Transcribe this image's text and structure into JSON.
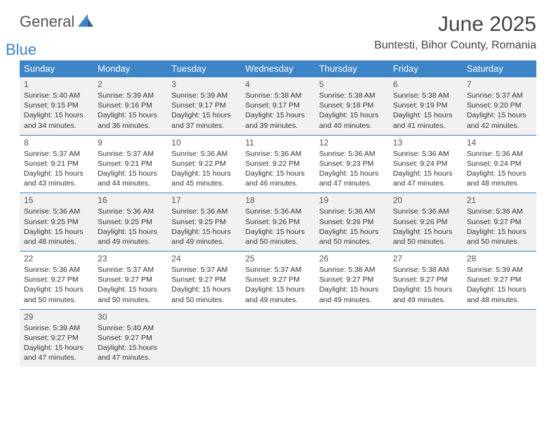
{
  "brand": {
    "general": "General",
    "blue": "Blue",
    "logo_color": "#3d85c6"
  },
  "header": {
    "month_title": "June 2025",
    "location": "Buntesti, Bihor County, Romania",
    "title_fontsize": 30,
    "title_color": "#444444",
    "location_fontsize": 16
  },
  "calendar": {
    "header_bg": "#3d85c6",
    "header_text_color": "#ffffff",
    "row_alt_bg": "#f1f1f1",
    "border_color": "#3d85c6",
    "day_headers": [
      "Sunday",
      "Monday",
      "Tuesday",
      "Wednesday",
      "Thursday",
      "Friday",
      "Saturday"
    ],
    "weeks": [
      [
        {
          "num": "1",
          "sunrise": "Sunrise: 5:40 AM",
          "sunset": "Sunset: 9:15 PM",
          "daylight": "Daylight: 15 hours and 34 minutes."
        },
        {
          "num": "2",
          "sunrise": "Sunrise: 5:39 AM",
          "sunset": "Sunset: 9:16 PM",
          "daylight": "Daylight: 15 hours and 36 minutes."
        },
        {
          "num": "3",
          "sunrise": "Sunrise: 5:39 AM",
          "sunset": "Sunset: 9:17 PM",
          "daylight": "Daylight: 15 hours and 37 minutes."
        },
        {
          "num": "4",
          "sunrise": "Sunrise: 5:38 AM",
          "sunset": "Sunset: 9:17 PM",
          "daylight": "Daylight: 15 hours and 39 minutes."
        },
        {
          "num": "5",
          "sunrise": "Sunrise: 5:38 AM",
          "sunset": "Sunset: 9:18 PM",
          "daylight": "Daylight: 15 hours and 40 minutes."
        },
        {
          "num": "6",
          "sunrise": "Sunrise: 5:38 AM",
          "sunset": "Sunset: 9:19 PM",
          "daylight": "Daylight: 15 hours and 41 minutes."
        },
        {
          "num": "7",
          "sunrise": "Sunrise: 5:37 AM",
          "sunset": "Sunset: 9:20 PM",
          "daylight": "Daylight: 15 hours and 42 minutes."
        }
      ],
      [
        {
          "num": "8",
          "sunrise": "Sunrise: 5:37 AM",
          "sunset": "Sunset: 9:21 PM",
          "daylight": "Daylight: 15 hours and 43 minutes."
        },
        {
          "num": "9",
          "sunrise": "Sunrise: 5:37 AM",
          "sunset": "Sunset: 9:21 PM",
          "daylight": "Daylight: 15 hours and 44 minutes."
        },
        {
          "num": "10",
          "sunrise": "Sunrise: 5:36 AM",
          "sunset": "Sunset: 9:22 PM",
          "daylight": "Daylight: 15 hours and 45 minutes."
        },
        {
          "num": "11",
          "sunrise": "Sunrise: 5:36 AM",
          "sunset": "Sunset: 9:22 PM",
          "daylight": "Daylight: 15 hours and 46 minutes."
        },
        {
          "num": "12",
          "sunrise": "Sunrise: 5:36 AM",
          "sunset": "Sunset: 9:23 PM",
          "daylight": "Daylight: 15 hours and 47 minutes."
        },
        {
          "num": "13",
          "sunrise": "Sunrise: 5:36 AM",
          "sunset": "Sunset: 9:24 PM",
          "daylight": "Daylight: 15 hours and 47 minutes."
        },
        {
          "num": "14",
          "sunrise": "Sunrise: 5:36 AM",
          "sunset": "Sunset: 9:24 PM",
          "daylight": "Daylight: 15 hours and 48 minutes."
        }
      ],
      [
        {
          "num": "15",
          "sunrise": "Sunrise: 5:36 AM",
          "sunset": "Sunset: 9:25 PM",
          "daylight": "Daylight: 15 hours and 48 minutes."
        },
        {
          "num": "16",
          "sunrise": "Sunrise: 5:36 AM",
          "sunset": "Sunset: 9:25 PM",
          "daylight": "Daylight: 15 hours and 49 minutes."
        },
        {
          "num": "17",
          "sunrise": "Sunrise: 5:36 AM",
          "sunset": "Sunset: 9:25 PM",
          "daylight": "Daylight: 15 hours and 49 minutes."
        },
        {
          "num": "18",
          "sunrise": "Sunrise: 5:36 AM",
          "sunset": "Sunset: 9:26 PM",
          "daylight": "Daylight: 15 hours and 50 minutes."
        },
        {
          "num": "19",
          "sunrise": "Sunrise: 5:36 AM",
          "sunset": "Sunset: 9:26 PM",
          "daylight": "Daylight: 15 hours and 50 minutes."
        },
        {
          "num": "20",
          "sunrise": "Sunrise: 5:36 AM",
          "sunset": "Sunset: 9:26 PM",
          "daylight": "Daylight: 15 hours and 50 minutes."
        },
        {
          "num": "21",
          "sunrise": "Sunrise: 5:36 AM",
          "sunset": "Sunset: 9:27 PM",
          "daylight": "Daylight: 15 hours and 50 minutes."
        }
      ],
      [
        {
          "num": "22",
          "sunrise": "Sunrise: 5:36 AM",
          "sunset": "Sunset: 9:27 PM",
          "daylight": "Daylight: 15 hours and 50 minutes."
        },
        {
          "num": "23",
          "sunrise": "Sunrise: 5:37 AM",
          "sunset": "Sunset: 9:27 PM",
          "daylight": "Daylight: 15 hours and 50 minutes."
        },
        {
          "num": "24",
          "sunrise": "Sunrise: 5:37 AM",
          "sunset": "Sunset: 9:27 PM",
          "daylight": "Daylight: 15 hours and 50 minutes."
        },
        {
          "num": "25",
          "sunrise": "Sunrise: 5:37 AM",
          "sunset": "Sunset: 9:27 PM",
          "daylight": "Daylight: 15 hours and 49 minutes."
        },
        {
          "num": "26",
          "sunrise": "Sunrise: 5:38 AM",
          "sunset": "Sunset: 9:27 PM",
          "daylight": "Daylight: 15 hours and 49 minutes."
        },
        {
          "num": "27",
          "sunrise": "Sunrise: 5:38 AM",
          "sunset": "Sunset: 9:27 PM",
          "daylight": "Daylight: 15 hours and 49 minutes."
        },
        {
          "num": "28",
          "sunrise": "Sunrise: 5:39 AM",
          "sunset": "Sunset: 9:27 PM",
          "daylight": "Daylight: 15 hours and 48 minutes."
        }
      ],
      [
        {
          "num": "29",
          "sunrise": "Sunrise: 5:39 AM",
          "sunset": "Sunset: 9:27 PM",
          "daylight": "Daylight: 15 hours and 47 minutes."
        },
        {
          "num": "30",
          "sunrise": "Sunrise: 5:40 AM",
          "sunset": "Sunset: 9:27 PM",
          "daylight": "Daylight: 15 hours and 47 minutes."
        },
        null,
        null,
        null,
        null,
        null
      ]
    ]
  }
}
